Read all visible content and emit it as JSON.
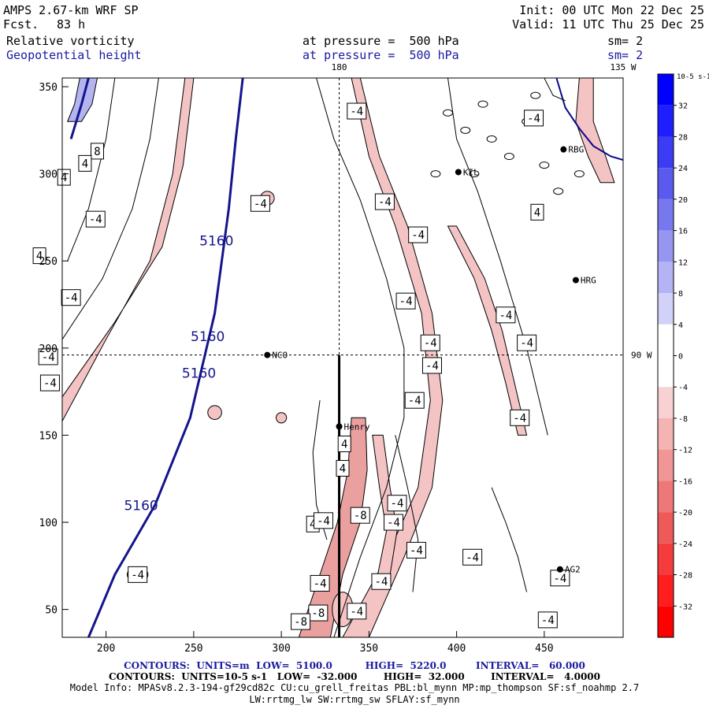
{
  "header": {
    "model_title": "AMPS 2.67-km WRF SP",
    "forecast_label": "Fcst.",
    "forecast_hours": "83 h",
    "init_line": "Init: 00 UTC Mon 22 Dec 25",
    "valid_line": "Valid: 11 UTC Thu 25 Dec 25",
    "field1": "Relative vorticity",
    "field2": "Geopotential height",
    "level1": "at pressure =  500 hPa",
    "level2": "at pressure =  500 hPa",
    "sm1": "sm= 2",
    "sm2": "sm= 2"
  },
  "colors": {
    "height_contour": "#14148c",
    "positive_fill": "#b4b4f0",
    "negative_fill": "#f4c4c4",
    "strong_negative_fill": "#eba0a0",
    "coastline": "#0a0a8c"
  },
  "chart_data": {
    "type": "contour",
    "xlim": [
      175,
      495
    ],
    "ylim": [
      34,
      355
    ],
    "x_ticks": [
      200,
      250,
      300,
      350,
      400,
      450
    ],
    "y_ticks": [
      50,
      100,
      150,
      200,
      250,
      300,
      350
    ],
    "top_labels": [
      "180",
      "135 W"
    ],
    "right_label": "90 W",
    "grid_x": 333,
    "grid_y": 196,
    "height_contours": {
      "level": "5160",
      "points": [
        [
          190,
          355
        ],
        [
          186,
          340
        ],
        [
          180,
          320
        ]
      ],
      "main_points": [
        [
          278,
          355
        ],
        [
          274,
          320
        ],
        [
          270,
          280
        ],
        [
          262,
          220
        ],
        [
          248,
          160
        ],
        [
          228,
          110
        ],
        [
          205,
          70
        ],
        [
          190,
          34
        ]
      ]
    },
    "station_markers": [
      {
        "name": "NCO",
        "x": 292,
        "y": 196
      },
      {
        "name": "Henry",
        "x": 333,
        "y": 155
      },
      {
        "name": "HRG",
        "x": 468,
        "y": 239
      },
      {
        "name": "AG2",
        "x": 459,
        "y": 73
      },
      {
        "name": "RBG",
        "x": 461,
        "y": 314
      },
      {
        "name": "KIL",
        "x": 401,
        "y": 301
      }
    ],
    "contour_labels": [
      {
        "text": "8",
        "x": 195,
        "y": 313
      },
      {
        "text": "4",
        "x": 188,
        "y": 306
      },
      {
        "text": "4",
        "x": 176,
        "y": 298
      },
      {
        "text": "-4",
        "x": 194,
        "y": 274
      },
      {
        "text": "4",
        "x": 162,
        "y": 253
      },
      {
        "text": "-4",
        "x": 180,
        "y": 229
      },
      {
        "text": "-4",
        "x": 167,
        "y": 195
      },
      {
        "text": "-4",
        "x": 168,
        "y": 180
      },
      {
        "text": "-4",
        "x": 288,
        "y": 283
      },
      {
        "text": "-4",
        "x": 343,
        "y": 336
      },
      {
        "text": "-4",
        "x": 359,
        "y": 284
      },
      {
        "text": "-4",
        "x": 378,
        "y": 265
      },
      {
        "text": "-4",
        "x": 371,
        "y": 227
      },
      {
        "text": "-4",
        "x": 385,
        "y": 203
      },
      {
        "text": "-4",
        "x": 386,
        "y": 190
      },
      {
        "text": "-4",
        "x": 376,
        "y": 170
      },
      {
        "text": "-4",
        "x": 428,
        "y": 219
      },
      {
        "text": "-4",
        "x": 440,
        "y": 203
      },
      {
        "text": "-4",
        "x": 436,
        "y": 160
      },
      {
        "text": "-4",
        "x": 444,
        "y": 332
      },
      {
        "text": "4",
        "x": 446,
        "y": 278
      },
      {
        "text": "4",
        "x": 336,
        "y": 145
      },
      {
        "text": "4",
        "x": 335,
        "y": 131
      },
      {
        "text": "-4",
        "x": 366,
        "y": 111
      },
      {
        "text": "-8",
        "x": 345,
        "y": 104
      },
      {
        "text": "-4",
        "x": 364,
        "y": 100
      },
      {
        "text": "4",
        "x": 318,
        "y": 99
      },
      {
        "text": "-4",
        "x": 324,
        "y": 101
      },
      {
        "text": "-4",
        "x": 377,
        "y": 84
      },
      {
        "text": "-4",
        "x": 409,
        "y": 80
      },
      {
        "text": "-4",
        "x": 357,
        "y": 66
      },
      {
        "text": "-4",
        "x": 322,
        "y": 65
      },
      {
        "text": "-8",
        "x": 321,
        "y": 48
      },
      {
        "text": "-4",
        "x": 343,
        "y": 49
      },
      {
        "text": "-8",
        "x": 311,
        "y": 43
      },
      {
        "text": "-4",
        "x": 459,
        "y": 68
      },
      {
        "text": "-4",
        "x": 452,
        "y": 44
      },
      {
        "text": "-4",
        "x": 218,
        "y": 70
      }
    ],
    "height_labels": [
      {
        "text": "5160",
        "x": 263,
        "y": 259
      },
      {
        "text": "5160",
        "x": 258,
        "y": 204
      },
      {
        "text": "5160",
        "x": 253,
        "y": 183
      },
      {
        "text": "5160",
        "x": 220,
        "y": 107
      }
    ],
    "vertical_line": {
      "x": 333,
      "y_from": 196,
      "y_to": 34
    },
    "colorbar": {
      "unit": "10-5 s-1",
      "levels": [
        32,
        28,
        24,
        20,
        16,
        12,
        8,
        4,
        0,
        -4,
        -8,
        -12,
        -16,
        -20,
        -24,
        -28,
        -32
      ],
      "colors": [
        "#0000ff",
        "#1e1eff",
        "#3c3cf5",
        "#5a5aee",
        "#7878ee",
        "#9696f0",
        "#b4b4f4",
        "#d2d2f8",
        "#ffffff",
        "#ffffff",
        "#f8d2d2",
        "#f4b4b4",
        "#f09696",
        "#ee7878",
        "#ee5a5a",
        "#f53c3c",
        "#ff1e1e",
        "#ff0000"
      ]
    }
  },
  "footer": {
    "line1": "CONTOURS:  UNITS=m  LOW=  5100.0          HIGH=  5220.0         INTERVAL=   60.000",
    "line2": "CONTOURS:  UNITS=10-5 s-1   LOW=  -32.000        HIGH=  32.000        INTERVAL=   4.0000",
    "line3": "Model Info: MPASv8.2.3-194-gf29cd82c CU:cu_grell_freitas PBL:bl_mynn MP:mp_thompson SF:sf_noahmp 2.7",
    "line4": "LW:rrtmg_lw SW:rrtmg_sw SFLAY:sf_mynn"
  }
}
